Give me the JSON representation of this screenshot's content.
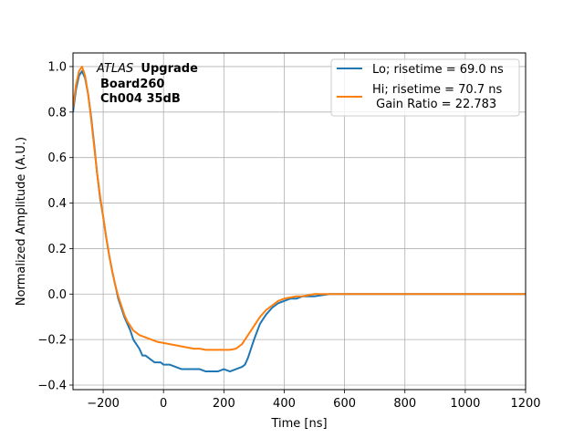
{
  "chart_data": {
    "type": "line",
    "xlabel": "Time [ns]",
    "ylabel": "Normalized Amplitude (A.U.)",
    "xlim": [
      -300,
      1200
    ],
    "ylim": [
      -0.42,
      1.06
    ],
    "xticks": [
      -200,
      0,
      200,
      400,
      600,
      800,
      1000,
      1200
    ],
    "xtick_labels": [
      "−200",
      "0",
      "200",
      "400",
      "600",
      "800",
      "1000",
      "1200"
    ],
    "yticks": [
      -0.4,
      -0.2,
      0.0,
      0.2,
      0.4,
      0.6,
      0.8,
      1.0
    ],
    "ytick_labels": [
      "−0.4",
      "−0.2",
      "0.0",
      "0.2",
      "0.4",
      "0.6",
      "0.8",
      "1.0"
    ],
    "grid": true,
    "legend_position": "top-right",
    "annotation": {
      "line1_italic": "ATLAS",
      "line1_bold": "Upgrade",
      "line2": "Board260",
      "line3": "Ch004 35dB"
    },
    "series": [
      {
        "name": "Lo; risetime = 69.0 ns",
        "color": "#1f77b4",
        "x": [
          -300,
          -290,
          -280,
          -270,
          -260,
          -250,
          -240,
          -230,
          -220,
          -210,
          -200,
          -190,
          -180,
          -170,
          -160,
          -150,
          -140,
          -130,
          -120,
          -110,
          -100,
          -90,
          -80,
          -70,
          -60,
          -50,
          -40,
          -30,
          -20,
          -10,
          0,
          20,
          40,
          60,
          80,
          100,
          120,
          140,
          160,
          180,
          200,
          220,
          240,
          260,
          270,
          280,
          290,
          300,
          320,
          340,
          360,
          380,
          400,
          420,
          440,
          460,
          480,
          500,
          550,
          600,
          650,
          700,
          750,
          800,
          850,
          900,
          950,
          1000,
          1050,
          1100,
          1150,
          1200
        ],
        "y": [
          0.8,
          0.9,
          0.96,
          0.98,
          0.95,
          0.88,
          0.78,
          0.66,
          0.53,
          0.42,
          0.34,
          0.25,
          0.17,
          0.1,
          0.04,
          -0.02,
          -0.06,
          -0.1,
          -0.13,
          -0.16,
          -0.2,
          -0.22,
          -0.24,
          -0.27,
          -0.27,
          -0.28,
          -0.29,
          -0.3,
          -0.3,
          -0.3,
          -0.31,
          -0.31,
          -0.32,
          -0.33,
          -0.33,
          -0.33,
          -0.33,
          -0.34,
          -0.34,
          -0.34,
          -0.33,
          -0.34,
          -0.33,
          -0.32,
          -0.31,
          -0.28,
          -0.24,
          -0.2,
          -0.13,
          -0.09,
          -0.06,
          -0.04,
          -0.03,
          -0.02,
          -0.02,
          -0.01,
          -0.01,
          -0.01,
          0.0,
          0.0,
          0.0,
          0.0,
          0.0,
          0.0,
          0.0,
          0.0,
          0.0,
          0.0,
          0.0,
          0.0,
          0.0,
          0.0
        ]
      },
      {
        "name": "Hi; risetime = 70.7 ns\n Gain Ratio = 22.783",
        "color": "#ff7f0e",
        "x": [
          -300,
          -290,
          -280,
          -270,
          -260,
          -250,
          -240,
          -230,
          -220,
          -210,
          -200,
          -190,
          -180,
          -170,
          -160,
          -150,
          -140,
          -130,
          -120,
          -110,
          -100,
          -80,
          -60,
          -40,
          -20,
          0,
          20,
          40,
          60,
          80,
          100,
          120,
          140,
          160,
          180,
          200,
          220,
          240,
          260,
          280,
          300,
          320,
          340,
          360,
          380,
          400,
          420,
          440,
          460,
          480,
          500,
          550,
          600,
          650,
          700,
          750,
          800,
          850,
          900,
          950,
          1000,
          1050,
          1100,
          1150,
          1200
        ],
        "y": [
          0.82,
          0.92,
          0.98,
          1.0,
          0.96,
          0.88,
          0.77,
          0.65,
          0.53,
          0.43,
          0.34,
          0.25,
          0.17,
          0.1,
          0.04,
          -0.01,
          -0.05,
          -0.09,
          -0.12,
          -0.14,
          -0.16,
          -0.18,
          -0.19,
          -0.2,
          -0.21,
          -0.215,
          -0.22,
          -0.225,
          -0.23,
          -0.235,
          -0.24,
          -0.24,
          -0.245,
          -0.245,
          -0.245,
          -0.245,
          -0.245,
          -0.24,
          -0.22,
          -0.18,
          -0.14,
          -0.1,
          -0.07,
          -0.05,
          -0.03,
          -0.02,
          -0.015,
          -0.01,
          -0.01,
          -0.005,
          0.0,
          0.0,
          0.0,
          0.0,
          0.0,
          0.0,
          0.0,
          0.0,
          0.0,
          0.0,
          0.0,
          0.0,
          0.0,
          0.0,
          0.0
        ]
      }
    ]
  }
}
